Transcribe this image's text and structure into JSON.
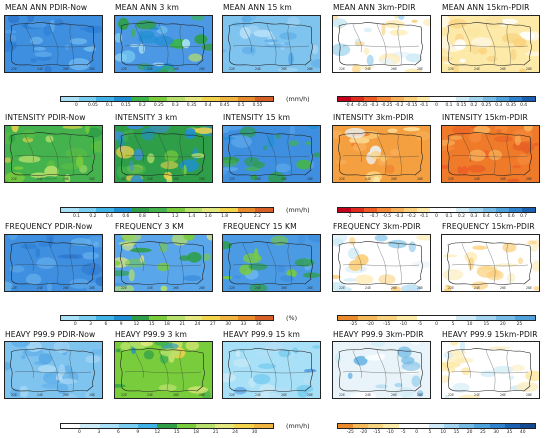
{
  "rows": [
    {
      "titles": [
        "MEAN ANN PDIR-Now",
        "MEAN ANN 3 km",
        "MEAN ANN 15 km",
        "MEAN ANN 3km-PDIR",
        "MEAN ANN 15km-PDIR"
      ],
      "panel_styles": [
        "blue",
        "blue_noisy",
        "lightblue",
        "diff_light",
        "diff_yellow"
      ],
      "left_bar": {
        "colors": [
          "#a8e0f7",
          "#79cdf0",
          "#41b2e6",
          "#1f8fd4",
          "#3bb54a",
          "#79cc3c",
          "#b6e06b",
          "#e3e87e",
          "#f2d44c",
          "#f0b540",
          "#e98a2c",
          "#d85f25"
        ],
        "ticks": [
          "0",
          "0.05",
          "0.1",
          "0.15",
          "0.2",
          "0.25",
          "0.3",
          "0.35",
          "0.4",
          "0.45",
          "0.5",
          "0.55"
        ],
        "unit": "(mm/h)"
      },
      "right_bar": {
        "colors": [
          "#c4001a",
          "#e02c1f",
          "#f05a25",
          "#f58a3a",
          "#f9b05a",
          "#fcd07c",
          "#fde9a8",
          "#ffffff",
          "#ffffff",
          "#cdeaf6",
          "#a2d4ef",
          "#75bbe6",
          "#4fa1da",
          "#2f83cc",
          "#1c60b3"
        ],
        "ticks": [
          "-0.4",
          "-0.35",
          "-0.3",
          "-0.25",
          "-0.2",
          "-0.15",
          "-0.1",
          "0",
          "0.1",
          "0.15",
          "0.2",
          "0.25",
          "0.3",
          "0.35",
          "0.4"
        ],
        "unit": ""
      }
    },
    {
      "titles": [
        "INTENSITY PDIR-Now",
        "INTENSITY 3 km",
        "INTENSITY 15 km",
        "INTENSITY 3km-PDIR",
        "INTENSITY 15km-PDIR"
      ],
      "panel_styles": [
        "green",
        "green_noisy",
        "blue_green",
        "orange",
        "orange_dark"
      ],
      "left_bar": {
        "colors": [
          "#a8e0f7",
          "#79cdf0",
          "#41b2e6",
          "#1f8fd4",
          "#2e9e49",
          "#45b34d",
          "#79cc3c",
          "#b6e06b",
          "#e3e87e",
          "#f2d44c",
          "#e98a2c",
          "#d85f25"
        ],
        "ticks": [
          "0.1",
          "0.2",
          "0.4",
          "0.6",
          "0.8",
          "1",
          "1.2",
          "1.4",
          "1.6",
          "1.8",
          "2",
          "2.2"
        ],
        "unit": "(mm/h)"
      },
      "right_bar": {
        "colors": [
          "#c4001a",
          "#e02c1f",
          "#f05a25",
          "#f58a3a",
          "#f9b05a",
          "#fcd07c",
          "#fde9a8",
          "#ffffff",
          "#ffffff",
          "#cdeaf6",
          "#a2d4ef",
          "#75bbe6",
          "#4fa1da",
          "#2f83cc",
          "#1c60b3"
        ],
        "ticks": [
          "-2",
          "-1",
          "-0.7",
          "-0.5",
          "-0.3",
          "-0.2",
          "-0.1",
          "0",
          "0.1",
          "0.2",
          "0.3",
          "0.4",
          "0.5",
          "0.6",
          "0.7"
        ],
        "unit": ""
      }
    },
    {
      "titles": [
        "FREQUENCY PDIR-Now",
        "FREQUENCY 3 KM",
        "FREQUENCY 15 KM",
        "FREQUENCY 3km-PDIR",
        "FREQUENCY 15km-PDIR"
      ],
      "panel_styles": [
        "blue",
        "blue_yellow",
        "blue_green2",
        "diff_light",
        "diff_yellow_light"
      ],
      "left_bar": {
        "colors": [
          "#a8e0f7",
          "#79cdf0",
          "#41b2e6",
          "#1f8fd4",
          "#2e9e49",
          "#79cc3c",
          "#b6e06b",
          "#e3e87e",
          "#f2d44c",
          "#f0b540",
          "#e98a2c",
          "#d85f25"
        ],
        "ticks": [
          "0",
          "3",
          "6",
          "9",
          "12",
          "15",
          "18",
          "21",
          "24",
          "27",
          "30",
          "33",
          "36"
        ],
        "unit": "(%)"
      },
      "right_bar": {
        "colors": [
          "#e98a2c",
          "#f2b85a",
          "#f6d27e",
          "#fbe9a8",
          "#ffffff",
          "#ffffff",
          "#cdeaf6",
          "#a2d4ef",
          "#75bbe6",
          "#4fa1da"
        ],
        "ticks": [
          "-25",
          "-20",
          "-15",
          "-10",
          "-5",
          "0",
          "5",
          "10",
          "15",
          "20",
          "25"
        ],
        "unit": ""
      }
    },
    {
      "titles": [
        "HEAVY P99.9 PDIR-Now",
        "HEAVY P99.9 3 km",
        "HEAVY P99.9 15 km",
        "HEAVY P99.9 3km-PDIR",
        "HEAVY P99.9 15km-PDIR"
      ],
      "panel_styles": [
        "lightblue",
        "green_heavy",
        "lightblue2",
        "diff_blue",
        "diff_white"
      ],
      "left_bar": {
        "colors": [
          "#ffffff",
          "#cdeaf6",
          "#a8e0f7",
          "#79cdf0",
          "#41b2e6",
          "#2e9e49",
          "#79cc3c",
          "#b6e06b",
          "#e3e87e",
          "#f2d44c",
          "#f0b540"
        ],
        "ticks": [
          "0",
          "3",
          "6",
          "9",
          "12",
          "15",
          "18",
          "21",
          "24",
          "30"
        ],
        "unit": "(mm/h)"
      },
      "right_bar": {
        "colors": [
          "#e98a2c",
          "#f2b85a",
          "#f6d27e",
          "#fbe9a8",
          "#ffffff",
          "#ffffff",
          "#cdeaf6",
          "#a2d4ef",
          "#75bbe6",
          "#4fa1da",
          "#2f83cc",
          "#1c60b3",
          "#144a94"
        ],
        "ticks": [
          "-25",
          "-20",
          "-15",
          "-10",
          "-5",
          "0",
          "5",
          "10",
          "15",
          "20",
          "25",
          "30",
          "35",
          "40"
        ],
        "unit": ""
      }
    }
  ],
  "lon_labels": [
    "22E",
    "24E",
    "26E",
    "28E"
  ]
}
